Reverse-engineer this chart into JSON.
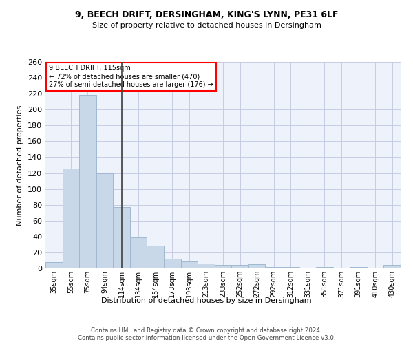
{
  "title_line1": "9, BEECH DRIFT, DERSINGHAM, KING'S LYNN, PE31 6LF",
  "title_line2": "Size of property relative to detached houses in Dersingham",
  "xlabel": "Distribution of detached houses by size in Dersingham",
  "ylabel": "Number of detached properties",
  "footer1": "Contains HM Land Registry data © Crown copyright and database right 2024.",
  "footer2": "Contains public sector information licensed under the Open Government Licence v3.0.",
  "annotation_line1": "9 BEECH DRIFT: 115sqm",
  "annotation_line2": "← 72% of detached houses are smaller (470)",
  "annotation_line3": "27% of semi-detached houses are larger (176) →",
  "bar_labels": [
    "35sqm",
    "55sqm",
    "75sqm",
    "94sqm",
    "114sqm",
    "134sqm",
    "154sqm",
    "173sqm",
    "193sqm",
    "213sqm",
    "233sqm",
    "252sqm",
    "272sqm",
    "292sqm",
    "312sqm",
    "331sqm",
    "351sqm",
    "371sqm",
    "391sqm",
    "410sqm",
    "430sqm"
  ],
  "bar_values": [
    8,
    126,
    218,
    120,
    77,
    39,
    29,
    12,
    9,
    6,
    4,
    4,
    5,
    2,
    2,
    0,
    2,
    0,
    2,
    0,
    4
  ],
  "bar_color": "#c8d8e8",
  "bar_edge_color": "#a0b8d0",
  "vline_color": "#404040",
  "annotation_box_color": "#ff0000",
  "background_color": "#eef2fb",
  "grid_color": "#c0c8e0",
  "ylim": [
    0,
    260
  ],
  "yticks": [
    0,
    20,
    40,
    60,
    80,
    100,
    120,
    140,
    160,
    180,
    200,
    220,
    240,
    260
  ]
}
